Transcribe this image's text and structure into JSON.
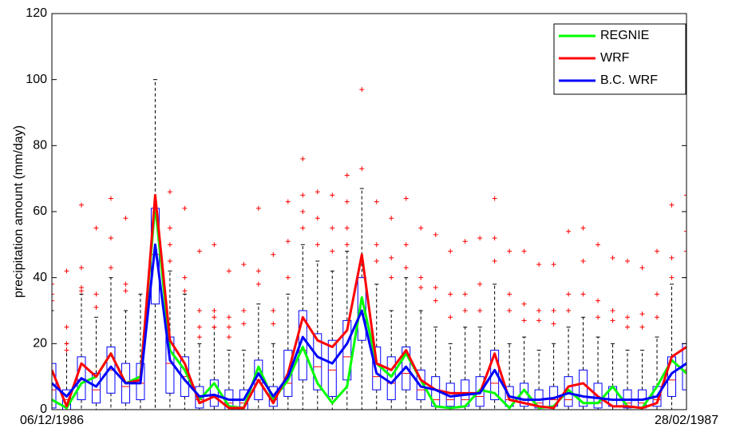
{
  "chart_data": {
    "type": "boxline",
    "ylabel": "precipitation amount (mm/day)",
    "categories": [
      "06/12/1986",
      null,
      null,
      null,
      null,
      null,
      null,
      null,
      null,
      null,
      null,
      null,
      null,
      null,
      null,
      null,
      null,
      null,
      null,
      null,
      null,
      null,
      null,
      null,
      null,
      null,
      null,
      null,
      null,
      null,
      null,
      null,
      null,
      null,
      null,
      null,
      null,
      null,
      null,
      null,
      null,
      null,
      null,
      "28/02/1987"
    ],
    "ylim": [
      0,
      120
    ],
    "yticks": [
      0,
      20,
      40,
      60,
      80,
      100,
      120
    ],
    "box_color": "#0000ff",
    "outlier_color": "#ff0000",
    "box_low": [
      0,
      0,
      0,
      0,
      0,
      0,
      0,
      0,
      0,
      0,
      0,
      0,
      0,
      0,
      0,
      0,
      0,
      0,
      0,
      0,
      0,
      0,
      0,
      0,
      0,
      0,
      0,
      0,
      0,
      0,
      0,
      0,
      0,
      0,
      0,
      0,
      0,
      0,
      0,
      0,
      0,
      0,
      0,
      0
    ],
    "box_q1": [
      0.5,
      0,
      3,
      2,
      5,
      2,
      3,
      32,
      5,
      4,
      0.5,
      1,
      0,
      0,
      3,
      1,
      4,
      9,
      6,
      4,
      9,
      21,
      6,
      3,
      6,
      3,
      1,
      1,
      1,
      1,
      3,
      1,
      1,
      0.5,
      1,
      1,
      1,
      0.5,
      1,
      0.5,
      0.5,
      1,
      4,
      6
    ],
    "box_median": [
      6,
      3,
      9,
      6,
      12,
      7,
      8,
      47,
      14,
      10,
      3,
      4,
      2,
      2,
      9,
      3,
      8,
      18,
      13,
      12,
      16,
      29,
      10,
      8,
      11,
      6,
      3,
      3,
      3,
      4,
      8,
      3,
      3,
      2,
      3,
      3,
      4,
      2,
      3,
      2,
      2,
      3,
      9,
      12
    ],
    "box_q3": [
      14,
      6,
      16,
      11,
      19,
      14,
      14,
      61,
      22,
      16,
      7,
      9,
      6,
      6,
      15,
      7,
      18,
      30,
      23,
      21,
      27,
      40,
      19,
      16,
      19,
      12,
      10,
      8,
      9,
      10,
      18,
      7,
      8,
      6,
      7,
      10,
      12,
      8,
      7,
      6,
      6,
      7,
      16,
      20
    ],
    "box_high": [
      30,
      20,
      35,
      28,
      40,
      30,
      35,
      100,
      42,
      35,
      20,
      25,
      18,
      18,
      32,
      20,
      35,
      50,
      45,
      42,
      48,
      67,
      38,
      30,
      40,
      30,
      25,
      20,
      25,
      25,
      38,
      20,
      22,
      18,
      20,
      25,
      28,
      22,
      20,
      18,
      18,
      22,
      38,
      40
    ],
    "outliers": [
      [
        38,
        33,
        35
      ],
      [
        42,
        25,
        20,
        18
      ],
      [
        62,
        43,
        37,
        36
      ],
      [
        55,
        35,
        31
      ],
      [
        64,
        52,
        43
      ],
      [
        58,
        38,
        36
      ],
      [],
      [],
      [
        66,
        55,
        50,
        45
      ],
      [
        61,
        40,
        36
      ],
      [
        48,
        30,
        25,
        22
      ],
      [
        50,
        30,
        28,
        25
      ],
      [
        42,
        28,
        25,
        22
      ],
      [
        44,
        30,
        26
      ],
      [
        61,
        42,
        38
      ],
      [
        47,
        30,
        26
      ],
      [
        63,
        51,
        40
      ],
      [
        76,
        65,
        60,
        55
      ],
      [
        66,
        58,
        50
      ],
      [
        65,
        55,
        48
      ],
      [
        71,
        63,
        55,
        50
      ],
      [
        97,
        73
      ],
      [
        63,
        50,
        45
      ],
      [
        58,
        46,
        40
      ],
      [
        64,
        50,
        43
      ],
      [
        55,
        40,
        37
      ],
      [
        53,
        37,
        33
      ],
      [
        48,
        35,
        28
      ],
      [
        51,
        35,
        30
      ],
      [
        52,
        38,
        30
      ],
      [
        64,
        52,
        45
      ],
      [
        48,
        35,
        30
      ],
      [
        48,
        32,
        27
      ],
      [
        44,
        30,
        27
      ],
      [
        44,
        30,
        26
      ],
      [
        54,
        35,
        30
      ],
      [
        55,
        45,
        35
      ],
      [
        50,
        33,
        28
      ],
      [
        46,
        30,
        27
      ],
      [
        45,
        28,
        25
      ],
      [
        43,
        29,
        25
      ],
      [
        48,
        35,
        28
      ],
      [
        62,
        46,
        40
      ],
      [
        65,
        54,
        48
      ]
    ],
    "series": [
      {
        "name": "REGNIE",
        "color": "#00ff00",
        "values": [
          3,
          0.5,
          8,
          10,
          17,
          8,
          10,
          62,
          18,
          12,
          3,
          8,
          1,
          0.5,
          13,
          3,
          9,
          19,
          8,
          2,
          7,
          34,
          14,
          10,
          17,
          9,
          1,
          0.5,
          1,
          6,
          5,
          0.5,
          6,
          0.5,
          1,
          6,
          2,
          2,
          7,
          1,
          0.5,
          7,
          15,
          11
        ]
      },
      {
        "name": "WRF",
        "color": "#ff0000",
        "values": [
          12,
          1,
          14,
          10,
          17,
          8,
          9,
          65,
          21,
          14,
          2,
          4,
          0.5,
          0.5,
          9,
          2,
          11,
          28,
          21,
          19,
          24,
          47,
          14,
          12,
          18,
          9,
          6,
          5,
          5,
          5,
          17,
          3,
          2,
          1,
          0.5,
          7,
          8,
          4,
          1,
          1,
          0.5,
          2,
          16,
          19
        ]
      },
      {
        "name": "B.C. WRF",
        "color": "#0000ff",
        "values": [
          8,
          4,
          9.5,
          7,
          13,
          8,
          8,
          50,
          15,
          9,
          4,
          4.5,
          3,
          3,
          11,
          4,
          10,
          22,
          16,
          14,
          20,
          30,
          11,
          8,
          13,
          7,
          6,
          4,
          4.5,
          5,
          12,
          4,
          3,
          3,
          3.5,
          5,
          4,
          3.5,
          3,
          3,
          3,
          4,
          11,
          14
        ]
      }
    ],
    "legend": "upper right"
  }
}
